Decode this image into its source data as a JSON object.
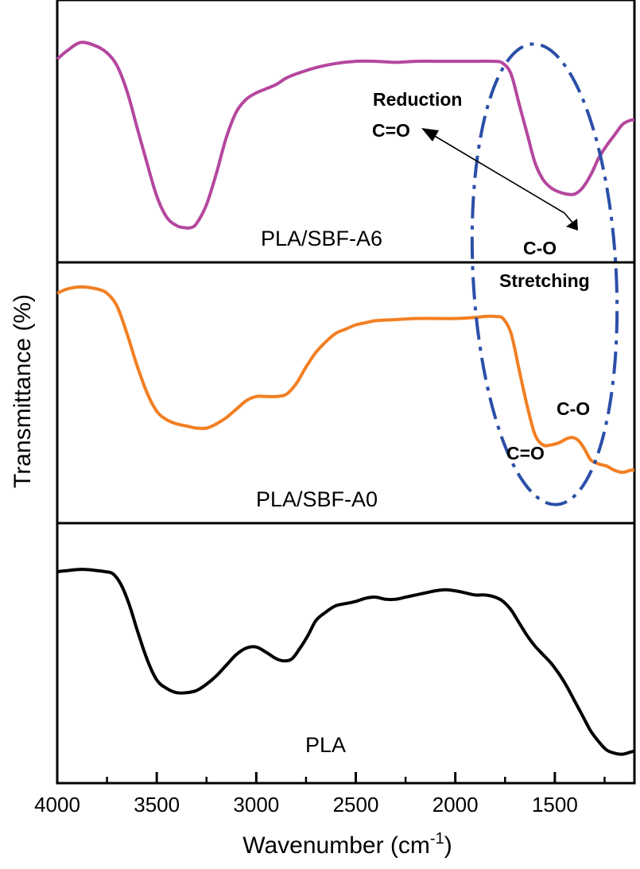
{
  "chart_data": {
    "type": "line",
    "title": "",
    "xlabel": "Wavenumber (cm",
    "xlabel_sup": "-1",
    "xlabel_suffix": ")",
    "ylabel": "Transmittance (%)",
    "xlim": [
      4000,
      1100
    ],
    "x_reversed": true,
    "xticks": [
      4000,
      3500,
      3000,
      2500,
      2000,
      1500
    ],
    "xtick_labels": [
      "4000",
      "3500",
      "3000",
      "2500",
      "2000",
      "1500"
    ],
    "grid": false,
    "panels": [
      {
        "name": "PLA/SBF-A6",
        "label": "PLA/SBF-A6",
        "color": "#b5479f",
        "ylim": [
          0,
          1
        ],
        "points": [
          [
            4000,
            0.87
          ],
          [
            3950,
            0.91
          ],
          [
            3880,
            0.95
          ],
          [
            3800,
            0.93
          ],
          [
            3750,
            0.9
          ],
          [
            3700,
            0.84
          ],
          [
            3650,
            0.72
          ],
          [
            3600,
            0.55
          ],
          [
            3550,
            0.38
          ],
          [
            3500,
            0.22
          ],
          [
            3450,
            0.12
          ],
          [
            3400,
            0.08
          ],
          [
            3360,
            0.07
          ],
          [
            3330,
            0.07
          ],
          [
            3300,
            0.09
          ],
          [
            3250,
            0.18
          ],
          [
            3200,
            0.33
          ],
          [
            3150,
            0.5
          ],
          [
            3100,
            0.62
          ],
          [
            3050,
            0.68
          ],
          [
            3000,
            0.71
          ],
          [
            2950,
            0.73
          ],
          [
            2900,
            0.75
          ],
          [
            2850,
            0.78
          ],
          [
            2800,
            0.8
          ],
          [
            2700,
            0.83
          ],
          [
            2600,
            0.85
          ],
          [
            2500,
            0.86
          ],
          [
            2400,
            0.86
          ],
          [
            2300,
            0.855
          ],
          [
            2200,
            0.86
          ],
          [
            2100,
            0.86
          ],
          [
            2000,
            0.86
          ],
          [
            1900,
            0.86
          ],
          [
            1800,
            0.86
          ],
          [
            1760,
            0.85
          ],
          [
            1720,
            0.8
          ],
          [
            1680,
            0.66
          ],
          [
            1640,
            0.52
          ],
          [
            1600,
            0.38
          ],
          [
            1560,
            0.3
          ],
          [
            1520,
            0.26
          ],
          [
            1480,
            0.24
          ],
          [
            1440,
            0.23
          ],
          [
            1400,
            0.23
          ],
          [
            1360,
            0.26
          ],
          [
            1320,
            0.32
          ],
          [
            1280,
            0.4
          ],
          [
            1240,
            0.46
          ],
          [
            1200,
            0.51
          ],
          [
            1160,
            0.56
          ],
          [
            1120,
            0.58
          ],
          [
            1100,
            0.58
          ]
        ]
      },
      {
        "name": "PLA/SBF-A0",
        "label": "PLA/SBF-A0",
        "color": "#f27f22",
        "ylim": [
          0,
          1
        ],
        "points": [
          [
            4000,
            0.91
          ],
          [
            3950,
            0.93
          ],
          [
            3880,
            0.94
          ],
          [
            3800,
            0.93
          ],
          [
            3750,
            0.91
          ],
          [
            3700,
            0.85
          ],
          [
            3650,
            0.72
          ],
          [
            3600,
            0.57
          ],
          [
            3550,
            0.44
          ],
          [
            3500,
            0.35
          ],
          [
            3450,
            0.31
          ],
          [
            3400,
            0.29
          ],
          [
            3350,
            0.28
          ],
          [
            3300,
            0.27
          ],
          [
            3250,
            0.27
          ],
          [
            3200,
            0.29
          ],
          [
            3150,
            0.32
          ],
          [
            3100,
            0.36
          ],
          [
            3050,
            0.4
          ],
          [
            3000,
            0.42
          ],
          [
            2950,
            0.42
          ],
          [
            2900,
            0.42
          ],
          [
            2850,
            0.43
          ],
          [
            2800,
            0.48
          ],
          [
            2750,
            0.56
          ],
          [
            2700,
            0.63
          ],
          [
            2650,
            0.68
          ],
          [
            2600,
            0.72
          ],
          [
            2550,
            0.74
          ],
          [
            2500,
            0.76
          ],
          [
            2450,
            0.77
          ],
          [
            2400,
            0.78
          ],
          [
            2300,
            0.785
          ],
          [
            2200,
            0.79
          ],
          [
            2100,
            0.79
          ],
          [
            2000,
            0.79
          ],
          [
            1900,
            0.795
          ],
          [
            1850,
            0.8
          ],
          [
            1800,
            0.8
          ],
          [
            1760,
            0.79
          ],
          [
            1720,
            0.72
          ],
          [
            1680,
            0.55
          ],
          [
            1640,
            0.38
          ],
          [
            1600,
            0.24
          ],
          [
            1560,
            0.19
          ],
          [
            1520,
            0.19
          ],
          [
            1480,
            0.2
          ],
          [
            1440,
            0.22
          ],
          [
            1410,
            0.225
          ],
          [
            1380,
            0.21
          ],
          [
            1350,
            0.17
          ],
          [
            1320,
            0.12
          ],
          [
            1280,
            0.1
          ],
          [
            1240,
            0.09
          ],
          [
            1200,
            0.07
          ],
          [
            1160,
            0.06
          ],
          [
            1120,
            0.07
          ],
          [
            1100,
            0.07
          ]
        ]
      },
      {
        "name": "PLA",
        "label": "PLA",
        "color": "#000000",
        "ylim": [
          0,
          1
        ],
        "points": [
          [
            4000,
            0.91
          ],
          [
            3950,
            0.915
          ],
          [
            3900,
            0.92
          ],
          [
            3850,
            0.92
          ],
          [
            3800,
            0.915
          ],
          [
            3760,
            0.91
          ],
          [
            3720,
            0.9
          ],
          [
            3680,
            0.85
          ],
          [
            3640,
            0.76
          ],
          [
            3600,
            0.64
          ],
          [
            3550,
            0.5
          ],
          [
            3500,
            0.4
          ],
          [
            3450,
            0.36
          ],
          [
            3400,
            0.34
          ],
          [
            3350,
            0.34
          ],
          [
            3300,
            0.35
          ],
          [
            3250,
            0.38
          ],
          [
            3200,
            0.42
          ],
          [
            3150,
            0.47
          ],
          [
            3100,
            0.52
          ],
          [
            3050,
            0.55
          ],
          [
            3000,
            0.555
          ],
          [
            2950,
            0.53
          ],
          [
            2900,
            0.5
          ],
          [
            2860,
            0.49
          ],
          [
            2820,
            0.5
          ],
          [
            2780,
            0.55
          ],
          [
            2740,
            0.61
          ],
          [
            2700,
            0.68
          ],
          [
            2650,
            0.72
          ],
          [
            2600,
            0.75
          ],
          [
            2550,
            0.76
          ],
          [
            2500,
            0.77
          ],
          [
            2450,
            0.785
          ],
          [
            2400,
            0.79
          ],
          [
            2350,
            0.78
          ],
          [
            2300,
            0.78
          ],
          [
            2250,
            0.79
          ],
          [
            2200,
            0.8
          ],
          [
            2150,
            0.81
          ],
          [
            2100,
            0.82
          ],
          [
            2050,
            0.825
          ],
          [
            2000,
            0.82
          ],
          [
            1950,
            0.81
          ],
          [
            1900,
            0.8
          ],
          [
            1850,
            0.8
          ],
          [
            1800,
            0.79
          ],
          [
            1760,
            0.77
          ],
          [
            1720,
            0.73
          ],
          [
            1680,
            0.67
          ],
          [
            1640,
            0.61
          ],
          [
            1600,
            0.56
          ],
          [
            1560,
            0.52
          ],
          [
            1520,
            0.48
          ],
          [
            1480,
            0.43
          ],
          [
            1440,
            0.37
          ],
          [
            1400,
            0.3
          ],
          [
            1360,
            0.23
          ],
          [
            1320,
            0.16
          ],
          [
            1280,
            0.11
          ],
          [
            1240,
            0.07
          ],
          [
            1200,
            0.055
          ],
          [
            1160,
            0.05
          ],
          [
            1120,
            0.06
          ],
          [
            1100,
            0.065
          ]
        ]
      }
    ],
    "annotations": {
      "reduction_line1": "Reduction",
      "reduction_line2": "C=O",
      "stretching_line1": "C-O",
      "stretching_line2": "Stretching",
      "peak_co_double": "C=O",
      "peak_co_single": "C-O",
      "ellipse_color": "#2b4fa8"
    }
  }
}
